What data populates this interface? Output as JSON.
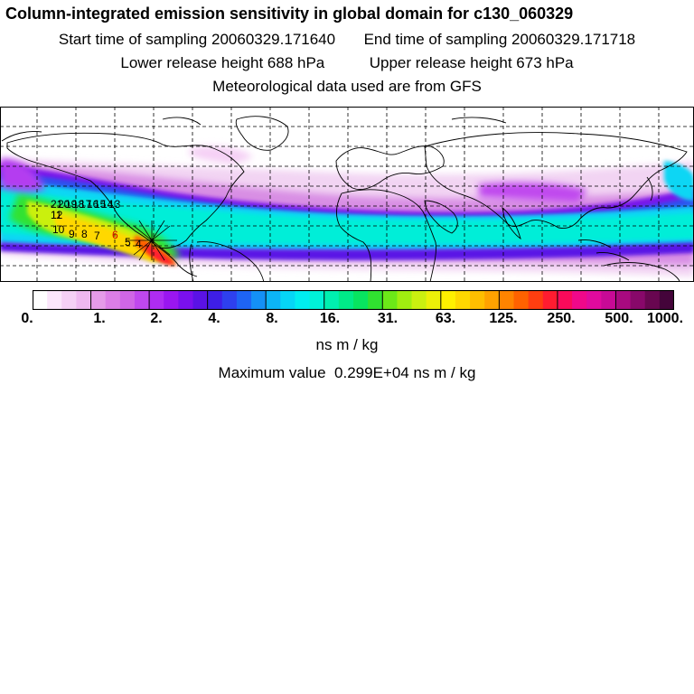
{
  "header": {
    "title": "Column-integrated emission sensitivity in global domain for c130_060329",
    "start_label": "Start time of sampling",
    "start_value": "20060329.171640",
    "end_label": "End time of sampling",
    "end_value": "20060329.171718",
    "lower_label": "Lower release height",
    "lower_value": "688 hPa",
    "upper_label": "Upper release height",
    "upper_value": "673 hPa",
    "met_line": "Meteorological data used are from GFS"
  },
  "map": {
    "projection": "global lat-lon",
    "gridlines": "dashed",
    "track_labels": [
      "21",
      "20",
      "19",
      "18",
      "17",
      "16",
      "15",
      "14",
      "13",
      "12",
      "11",
      "10",
      "9",
      "8",
      "7",
      "6",
      "5",
      "4"
    ]
  },
  "legend": {
    "tick_labels": [
      "0.",
      "1.",
      "2.",
      "4.",
      "8.",
      "16.",
      "31.",
      "63.",
      "125.",
      "250.",
      "500.",
      "1000."
    ],
    "units": "ns m / kg",
    "max_label": "Maximum value",
    "max_value": "0.299E+04",
    "max_units": "ns m / kg",
    "colors": [
      "#ffffff",
      "#fbe6fb",
      "#f5d0f5",
      "#efb8f0",
      "#e59be8",
      "#dc7ee6",
      "#d066e6",
      "#c048ee",
      "#ae2cf2",
      "#9a16f0",
      "#7a10ee",
      "#5a12e6",
      "#3e1ee6",
      "#2e40ee",
      "#1e64f4",
      "#1490f6",
      "#0cb4f6",
      "#06d6f6",
      "#00eef0",
      "#00f2d8",
      "#00f0b0",
      "#00ea88",
      "#08e460",
      "#30e230",
      "#6ce818",
      "#a0ee10",
      "#caf010",
      "#ecf008",
      "#fff000",
      "#ffd800",
      "#ffbe00",
      "#ffa200",
      "#ff8400",
      "#ff6200",
      "#ff3e10",
      "#ff1c30",
      "#fa0a5a",
      "#f0088a",
      "#e00a9e",
      "#c80a96",
      "#a80a80",
      "#88086a",
      "#680650",
      "#44043a"
    ]
  }
}
